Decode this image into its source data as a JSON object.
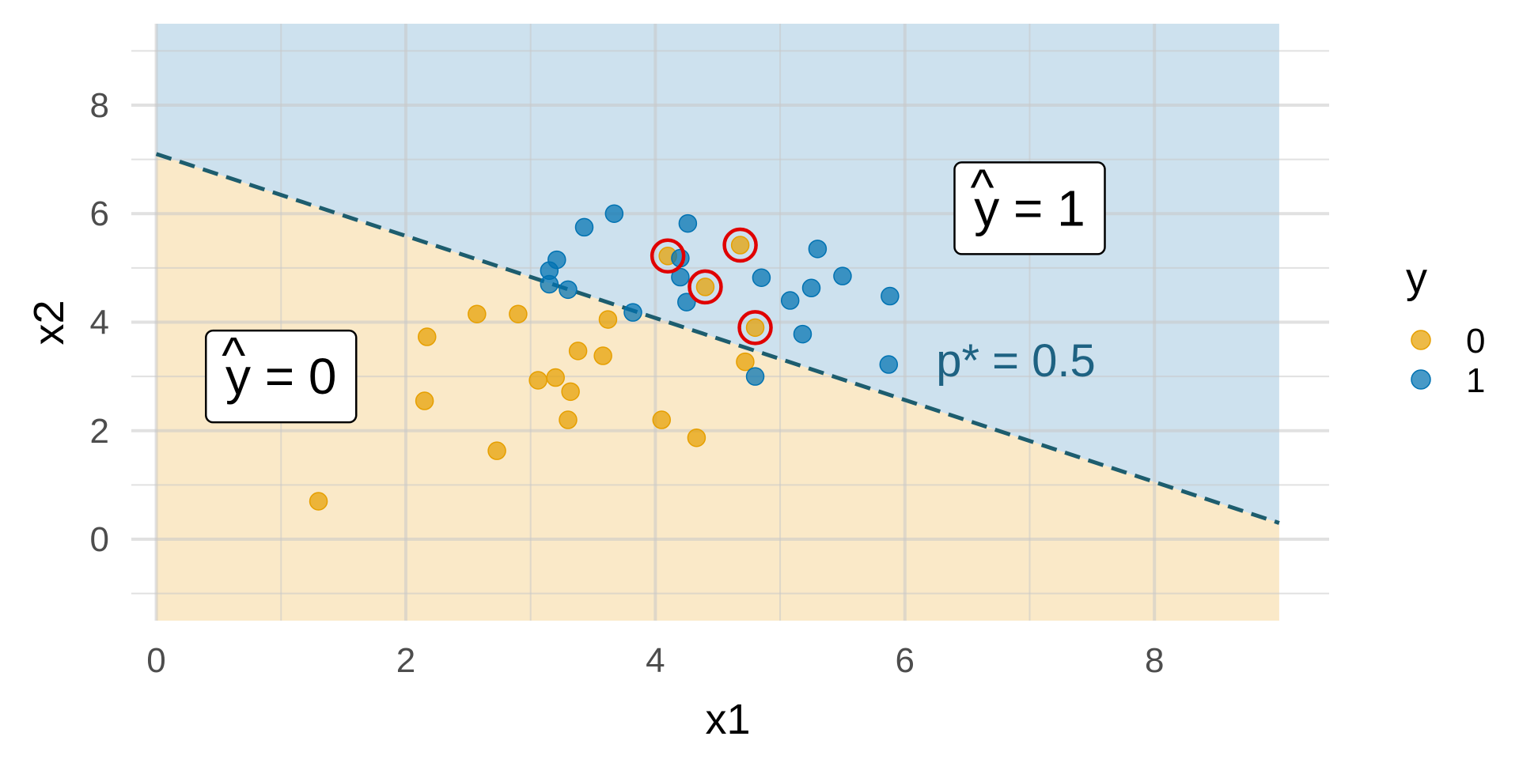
{
  "chart_data": {
    "type": "scatter",
    "xlabel": "x1",
    "ylabel": "x2",
    "xlim": [
      -0.2,
      9.4
    ],
    "ylim": [
      -1.5,
      9.5
    ],
    "x_ticks": [
      "0",
      "2",
      "4",
      "6",
      "8"
    ],
    "y_ticks": [
      "0",
      "2",
      "4",
      "6",
      "8"
    ],
    "grid": true,
    "legend": {
      "title": "y",
      "position": "right",
      "entries": [
        {
          "label": "0",
          "color": "#E69F00"
        },
        {
          "label": "1",
          "color": "#0072B2"
        }
      ]
    },
    "regions": {
      "x_range": [
        0,
        9
      ],
      "y_range": [
        -1.5,
        9.5
      ],
      "class0": {
        "label_hat": "^",
        "label_text": "y = 0",
        "fill": "#FAE9C8",
        "label_x": 1.0,
        "label_y": 3.0
      },
      "class1": {
        "label_hat": "^",
        "label_text": "y = 1",
        "fill": "#CDE1EE",
        "label_x": 7.0,
        "label_y": 6.1
      }
    },
    "decision_boundary": {
      "x": [
        0,
        9
      ],
      "y": [
        7.1,
        0.3
      ],
      "style": "dashed",
      "color": "#1D5D6E",
      "label": "p* = 0.5",
      "label_color": "#1E6282",
      "label_x": 6.25,
      "label_y": 3.0
    },
    "series": [
      {
        "name": "0",
        "color": "#E69F00",
        "points": [
          {
            "x": 1.3,
            "y": 0.7
          },
          {
            "x": 2.15,
            "y": 2.55
          },
          {
            "x": 2.17,
            "y": 3.73
          },
          {
            "x": 2.57,
            "y": 4.15
          },
          {
            "x": 2.73,
            "y": 1.63
          },
          {
            "x": 2.9,
            "y": 4.15
          },
          {
            "x": 3.06,
            "y": 2.93
          },
          {
            "x": 3.2,
            "y": 2.98
          },
          {
            "x": 3.3,
            "y": 2.2
          },
          {
            "x": 3.32,
            "y": 2.72
          },
          {
            "x": 3.38,
            "y": 3.47
          },
          {
            "x": 3.58,
            "y": 3.38
          },
          {
            "x": 3.62,
            "y": 4.05
          },
          {
            "x": 4.05,
            "y": 2.2
          },
          {
            "x": 4.33,
            "y": 1.87
          },
          {
            "x": 4.72,
            "y": 3.27
          },
          {
            "x": 4.1,
            "y": 5.22
          },
          {
            "x": 4.4,
            "y": 4.65
          },
          {
            "x": 4.68,
            "y": 5.42
          },
          {
            "x": 4.8,
            "y": 3.9
          }
        ]
      },
      {
        "name": "1",
        "color": "#0072B2",
        "points": [
          {
            "x": 3.15,
            "y": 4.95
          },
          {
            "x": 3.21,
            "y": 5.15
          },
          {
            "x": 3.15,
            "y": 4.7
          },
          {
            "x": 3.3,
            "y": 4.6
          },
          {
            "x": 3.43,
            "y": 5.75
          },
          {
            "x": 3.67,
            "y": 6.0
          },
          {
            "x": 3.82,
            "y": 4.18
          },
          {
            "x": 4.2,
            "y": 5.18
          },
          {
            "x": 4.2,
            "y": 4.83
          },
          {
            "x": 4.26,
            "y": 5.82
          },
          {
            "x": 4.25,
            "y": 4.37
          },
          {
            "x": 4.8,
            "y": 3.0
          },
          {
            "x": 4.85,
            "y": 4.82
          },
          {
            "x": 5.08,
            "y": 4.4
          },
          {
            "x": 5.18,
            "y": 3.78
          },
          {
            "x": 5.25,
            "y": 4.63
          },
          {
            "x": 5.3,
            "y": 5.35
          },
          {
            "x": 5.5,
            "y": 4.85
          },
          {
            "x": 5.87,
            "y": 3.22
          },
          {
            "x": 5.88,
            "y": 4.48
          }
        ]
      }
    ],
    "misclassified": [
      {
        "x": 4.1,
        "y": 5.22
      },
      {
        "x": 4.4,
        "y": 4.65
      },
      {
        "x": 4.68,
        "y": 5.42
      },
      {
        "x": 4.8,
        "y": 3.9
      }
    ],
    "highlight_color": "#E00000"
  }
}
